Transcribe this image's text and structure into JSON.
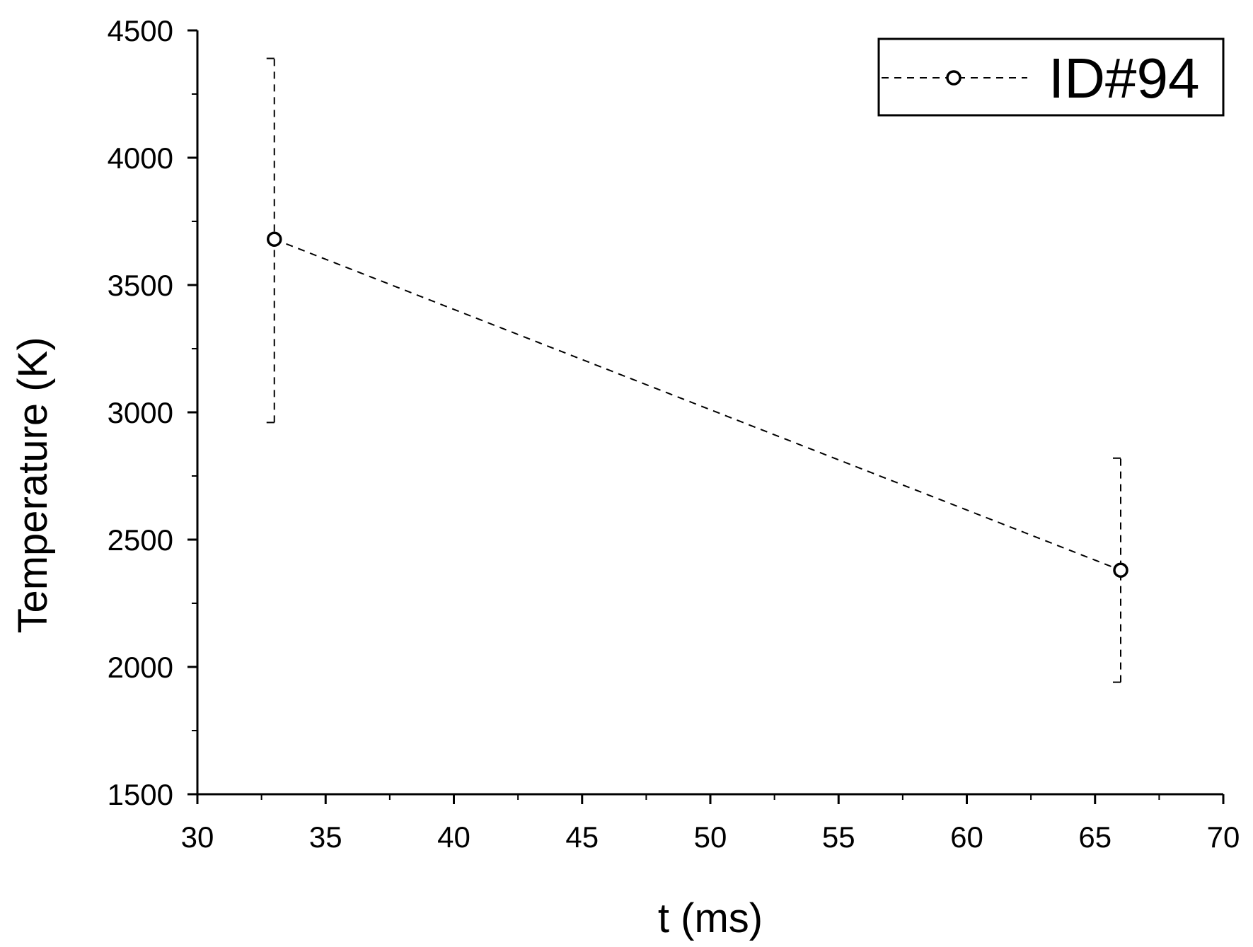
{
  "chart_data": {
    "type": "scatter",
    "title": "",
    "xlabel": "t (ms)",
    "ylabel": "Temperature (K)",
    "xlim": [
      30,
      70
    ],
    "ylim": [
      1500,
      4500
    ],
    "x_ticks": [
      30,
      35,
      40,
      45,
      50,
      55,
      60,
      65,
      70
    ],
    "y_ticks": [
      1500,
      2000,
      2500,
      3000,
      3500,
      4000,
      4500
    ],
    "x_minor_step": 2.5,
    "y_minor_step": 250,
    "grid": false,
    "legend_position": "top-right",
    "series": [
      {
        "name": "ID#94",
        "marker": "open-circle",
        "line_style": "dashed",
        "color": "#000000",
        "points": [
          {
            "x": 33,
            "y": 3680,
            "y_err_low": 2960,
            "y_err_high": 4390
          },
          {
            "x": 66,
            "y": 2380,
            "y_err_low": 1940,
            "y_err_high": 2820
          }
        ]
      }
    ]
  }
}
